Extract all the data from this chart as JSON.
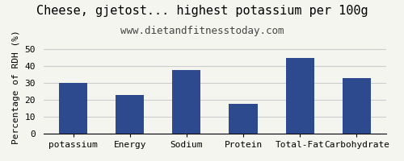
{
  "title": "Cheese, gjetost... highest potassium per 100g",
  "subtitle": "www.dietandfitnesstoday.com",
  "categories": [
    "potassium",
    "Energy",
    "Sodium",
    "Protein",
    "Total-Fat",
    "Carbohydrate"
  ],
  "values": [
    30.0,
    23.0,
    38.0,
    17.5,
    45.0,
    33.0
  ],
  "bar_color": "#2e4a8e",
  "ylabel": "Percentage of RDH (%)",
  "ylim": [
    0,
    55
  ],
  "yticks": [
    0,
    10,
    20,
    30,
    40,
    50
  ],
  "background_color": "#f5f5f0",
  "title_fontsize": 11,
  "subtitle_fontsize": 9,
  "ylabel_fontsize": 8,
  "tick_fontsize": 8,
  "grid_color": "#cccccc"
}
